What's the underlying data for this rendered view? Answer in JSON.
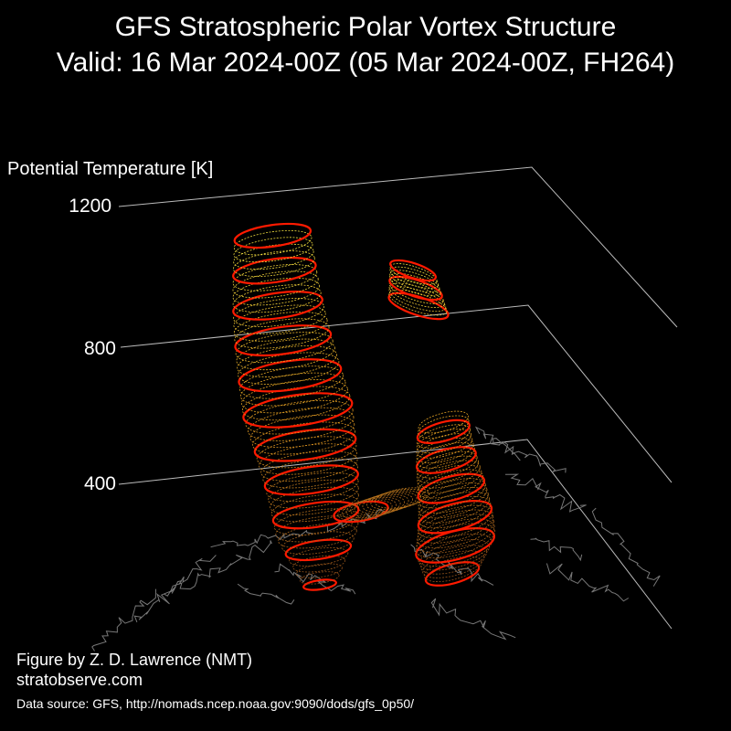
{
  "chart_data": {
    "type": "3d-isosurface",
    "title": "GFS Stratospheric Polar Vortex Structure",
    "subtitle": "Valid: 16 Mar 2024-00Z  (05 Mar 2024-00Z, FH264)",
    "zlabel": "Potential Temperature [K]",
    "z_ticks": [
      400,
      800,
      1200
    ],
    "zlim": [
      300,
      1200
    ],
    "colors": {
      "contour_highlight": "#ff1a00",
      "surface_low": "#8a4a1a",
      "surface_mid": "#e09a20",
      "surface_high": "#f0e040",
      "gridline": "#bbbbbb",
      "coastline": "#777777"
    }
  },
  "credits": {
    "author": "Figure by Z. D. Lawrence (NMT)",
    "site": "stratobserve.com",
    "source": "Data source: GFS, http://nomads.ncep.noaa.gov:9090/dods/gfs_0p50/"
  }
}
